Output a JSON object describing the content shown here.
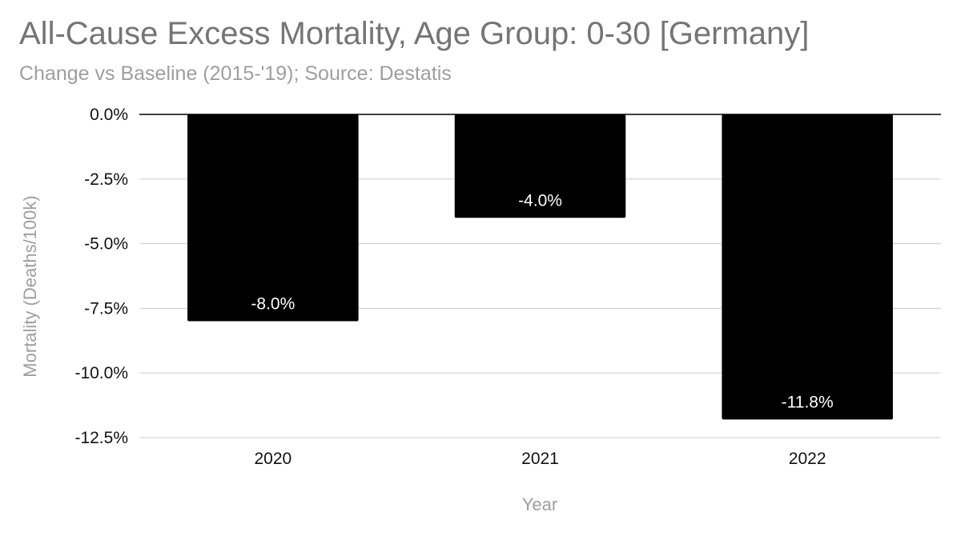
{
  "chart_data": {
    "type": "bar",
    "title": "All-Cause Excess Mortality, Age Group: 0-30 [Germany]",
    "subtitle": "Change vs Baseline (2015-'19); Source: Destatis",
    "xlabel": "Year",
    "ylabel": "Mortality (Deaths/100k)",
    "categories": [
      "2020",
      "2021",
      "2022"
    ],
    "values": [
      -8.0,
      -4.0,
      -11.8
    ],
    "data_labels": [
      "-8.0%",
      "-4.0%",
      "-11.8%"
    ],
    "ylim": [
      -12.5,
      0
    ],
    "yticks": [
      0,
      -2.5,
      -5,
      -7.5,
      -10,
      -12.5
    ],
    "ytick_labels": [
      "0.0%",
      "-2.5%",
      "-5.0%",
      "-7.5%",
      "-10.0%",
      "-12.5%"
    ],
    "grid": true,
    "bar_color": "#000000"
  }
}
